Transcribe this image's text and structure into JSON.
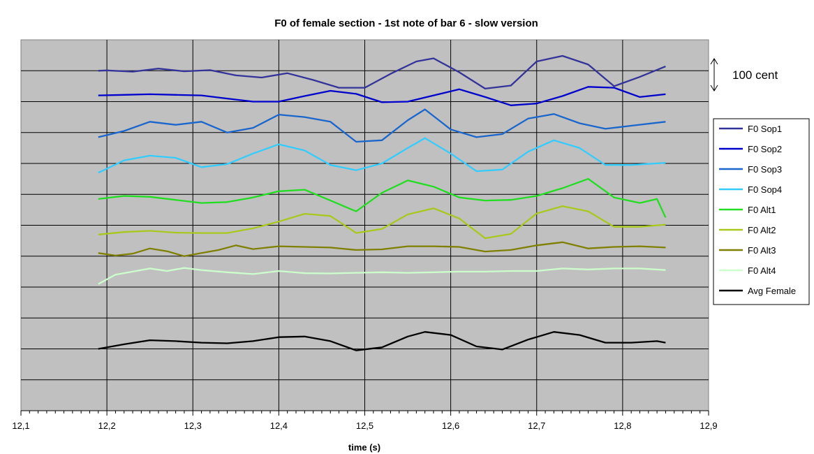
{
  "chart_data": {
    "type": "line",
    "title": "F0 of female section - 1st note of bar 6 - slow version",
    "xlabel": "time (s)",
    "ylabel": "",
    "xlim": [
      12.1,
      12.9
    ],
    "x_ticks": [
      "12,1",
      "12,2",
      "12,3",
      "12,4",
      "12,5",
      "12,6",
      "12,7",
      "12,8",
      "12,9"
    ],
    "y_units": "relative pitch (cent)",
    "ylim": [
      -1100,
      100
    ],
    "grid": true,
    "plot_background": "#c0c0c0",
    "annotation": {
      "text": "100 cent",
      "arrow_span_cent": 100
    },
    "legend_position": "right",
    "series": [
      {
        "name": "F0 Sop1",
        "color": "#333399",
        "x": [
          12.19,
          12.2,
          12.23,
          12.26,
          12.29,
          12.32,
          12.35,
          12.38,
          12.41,
          12.44,
          12.47,
          12.5,
          12.53,
          12.56,
          12.58,
          12.61,
          12.64,
          12.67,
          12.7,
          12.73,
          12.76,
          12.79,
          12.82,
          12.85
        ],
        "y": [
          0,
          1,
          -3,
          7,
          -2,
          2,
          -15,
          -22,
          -8,
          -30,
          -55,
          -55,
          -10,
          30,
          40,
          -5,
          -58,
          -48,
          30,
          48,
          20,
          -50,
          -20,
          14
        ]
      },
      {
        "name": "F0 Sop2",
        "color": "#0000cc",
        "x": [
          12.19,
          12.22,
          12.25,
          12.28,
          12.31,
          12.34,
          12.37,
          12.4,
          12.43,
          12.46,
          12.49,
          12.52,
          12.55,
          12.58,
          12.61,
          12.64,
          12.67,
          12.7,
          12.73,
          12.76,
          12.79,
          12.82,
          12.85
        ],
        "y": [
          -80,
          -78,
          -76,
          -78,
          -80,
          -90,
          -100,
          -100,
          -82,
          -65,
          -75,
          -102,
          -100,
          -80,
          -60,
          -85,
          -112,
          -106,
          -82,
          -52,
          -55,
          -85,
          -76
        ]
      },
      {
        "name": "F0 Sop3",
        "color": "#1a66cc",
        "x": [
          12.19,
          12.22,
          12.25,
          12.28,
          12.31,
          12.34,
          12.37,
          12.4,
          12.43,
          12.46,
          12.49,
          12.52,
          12.55,
          12.57,
          12.6,
          12.63,
          12.66,
          12.69,
          12.72,
          12.75,
          12.78,
          12.81,
          12.85
        ],
        "y": [
          -215,
          -195,
          -165,
          -175,
          -165,
          -200,
          -185,
          -142,
          -150,
          -165,
          -230,
          -225,
          -160,
          -125,
          -190,
          -215,
          -205,
          -155,
          -140,
          -170,
          -188,
          -178,
          -165
        ]
      },
      {
        "name": "F0 Sop4",
        "color": "#33ccff",
        "x": [
          12.19,
          12.22,
          12.25,
          12.28,
          12.31,
          12.34,
          12.37,
          12.4,
          12.43,
          12.46,
          12.49,
          12.52,
          12.55,
          12.57,
          12.6,
          12.63,
          12.66,
          12.69,
          12.72,
          12.75,
          12.78,
          12.81,
          12.85
        ],
        "y": [
          -330,
          -290,
          -275,
          -282,
          -312,
          -302,
          -268,
          -238,
          -258,
          -305,
          -322,
          -300,
          -250,
          -218,
          -268,
          -325,
          -320,
          -262,
          -225,
          -250,
          -305,
          -305,
          -298
        ]
      },
      {
        "name": "F0 Alt1",
        "color": "#22dd22",
        "x": [
          12.19,
          12.22,
          12.25,
          12.28,
          12.31,
          12.34,
          12.37,
          12.4,
          12.43,
          12.46,
          12.49,
          12.52,
          12.55,
          12.58,
          12.61,
          12.64,
          12.67,
          12.7,
          12.73,
          12.76,
          12.79,
          12.82,
          12.84,
          12.85
        ],
        "y": [
          -415,
          -405,
          -408,
          -418,
          -428,
          -425,
          -410,
          -390,
          -385,
          -420,
          -455,
          -395,
          -355,
          -375,
          -410,
          -420,
          -418,
          -405,
          -380,
          -350,
          -410,
          -428,
          -415,
          -475
        ]
      },
      {
        "name": "F0 Alt2",
        "color": "#a8c81e",
        "x": [
          12.19,
          12.22,
          12.25,
          12.28,
          12.31,
          12.34,
          12.37,
          12.4,
          12.43,
          12.46,
          12.49,
          12.52,
          12.55,
          12.58,
          12.61,
          12.64,
          12.67,
          12.7,
          12.73,
          12.76,
          12.79,
          12.82,
          12.85
        ],
        "y": [
          -530,
          -522,
          -518,
          -524,
          -525,
          -525,
          -510,
          -488,
          -463,
          -470,
          -525,
          -512,
          -465,
          -445,
          -478,
          -542,
          -528,
          -462,
          -438,
          -455,
          -505,
          -505,
          -498
        ]
      },
      {
        "name": "F0 Alt3",
        "color": "#808000",
        "x": [
          12.19,
          12.21,
          12.23,
          12.25,
          12.27,
          12.29,
          12.31,
          12.33,
          12.35,
          12.37,
          12.4,
          12.43,
          12.46,
          12.49,
          12.52,
          12.55,
          12.58,
          12.61,
          12.64,
          12.67,
          12.7,
          12.73,
          12.76,
          12.79,
          12.82,
          12.85
        ],
        "y": [
          -590,
          -598,
          -592,
          -575,
          -584,
          -600,
          -590,
          -580,
          -565,
          -577,
          -568,
          -570,
          -572,
          -580,
          -578,
          -568,
          -568,
          -570,
          -585,
          -580,
          -565,
          -555,
          -575,
          -570,
          -568,
          -572
        ]
      },
      {
        "name": "F0 Alt4",
        "color": "#ccffcc",
        "x": [
          12.19,
          12.21,
          12.23,
          12.25,
          12.27,
          12.29,
          12.31,
          12.34,
          12.37,
          12.4,
          12.43,
          12.46,
          12.49,
          12.52,
          12.55,
          12.58,
          12.61,
          12.64,
          12.67,
          12.7,
          12.73,
          12.76,
          12.79,
          12.82,
          12.85
        ],
        "y": [
          -690,
          -660,
          -650,
          -640,
          -648,
          -638,
          -645,
          -652,
          -658,
          -648,
          -655,
          -656,
          -654,
          -652,
          -654,
          -652,
          -650,
          -650,
          -648,
          -648,
          -640,
          -643,
          -640,
          -640,
          -645
        ]
      },
      {
        "name": "Avg Female",
        "color": "#000000",
        "x": [
          12.19,
          12.22,
          12.25,
          12.28,
          12.31,
          12.34,
          12.37,
          12.4,
          12.43,
          12.46,
          12.49,
          12.52,
          12.55,
          12.57,
          12.6,
          12.63,
          12.66,
          12.69,
          12.72,
          12.75,
          12.78,
          12.81,
          12.84,
          12.85
        ],
        "y": [
          -900,
          -885,
          -872,
          -875,
          -880,
          -882,
          -875,
          -862,
          -860,
          -875,
          -905,
          -895,
          -860,
          -845,
          -855,
          -892,
          -902,
          -870,
          -845,
          -855,
          -880,
          -880,
          -875,
          -880
        ]
      }
    ]
  }
}
